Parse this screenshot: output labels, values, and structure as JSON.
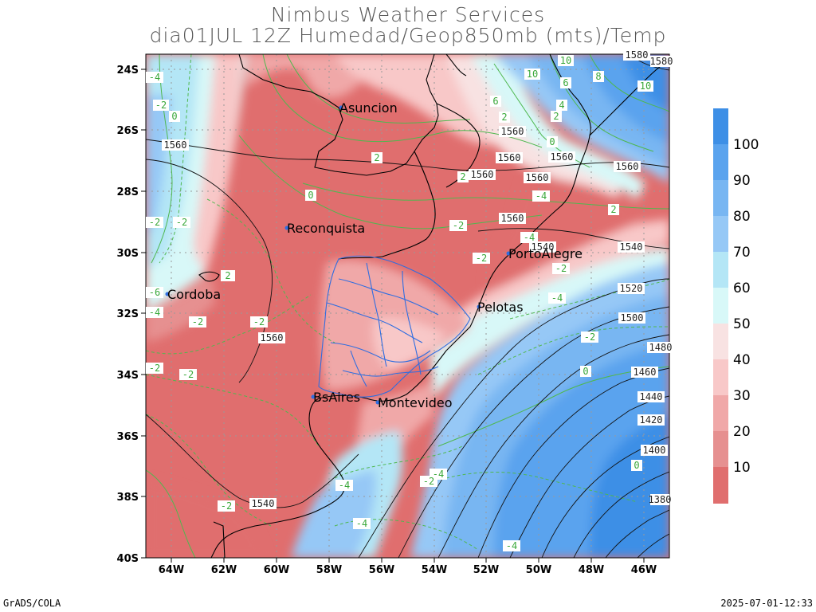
{
  "title": {
    "line1": "Nimbus Weather Services",
    "line2": "dia01JUL 12Z Humedad/Geop850mb (mts)/Temp"
  },
  "axes": {
    "lat_labels": [
      "24S",
      "26S",
      "28S",
      "30S",
      "32S",
      "34S",
      "36S",
      "38S",
      "40S"
    ],
    "lon_labels": [
      "64W",
      "62W",
      "60W",
      "58W",
      "56W",
      "54W",
      "52W",
      "50W",
      "48W",
      "46W"
    ]
  },
  "cities": [
    {
      "name": "Asuncion"
    },
    {
      "name": "Reconquista"
    },
    {
      "name": "Cordoba"
    },
    {
      "name": "PortoAlegre"
    },
    {
      "name": "Pelotas"
    },
    {
      "name": "BsAires"
    },
    {
      "name": "Montevideo"
    }
  ],
  "colorbar": {
    "labels": [
      "100",
      "90",
      "80",
      "70",
      "60",
      "50",
      "40",
      "30",
      "20",
      "10"
    ],
    "colors": [
      "#3d8fe6",
      "#5aa3ee",
      "#78b6f2",
      "#96c8f6",
      "#b4e6f6",
      "#d8f8f8",
      "#f8e2e2",
      "#f8c8c8",
      "#f0a8a8",
      "#e69090",
      "#e06e6e"
    ]
  },
  "geopotential_labels": [
    "1580",
    "1580",
    "1560",
    "1560",
    "1560",
    "1560",
    "1560",
    "1560",
    "1560",
    "1540",
    "1540",
    "1540",
    "1520",
    "1500",
    "1480",
    "1460",
    "1440",
    "1420",
    "1400",
    "1380"
  ],
  "temperature_labels": [
    "10",
    "10",
    "10",
    "8",
    "6",
    "6",
    "4",
    "2",
    "2",
    "0",
    "2",
    "2",
    "0",
    "2",
    "-2",
    "-4",
    "-4",
    "-2",
    "-2",
    "-2",
    "-2",
    "-2",
    "-2",
    "-4",
    "-4",
    "-4",
    "-4",
    "-2",
    "0",
    "-2",
    "2",
    "-2",
    "-4",
    "-2",
    "0",
    "-4",
    "-4",
    "0",
    "-2",
    "-2",
    "-6"
  ],
  "footer": {
    "left": "GrADS/COLA",
    "right": "2025-07-01-12:33"
  }
}
